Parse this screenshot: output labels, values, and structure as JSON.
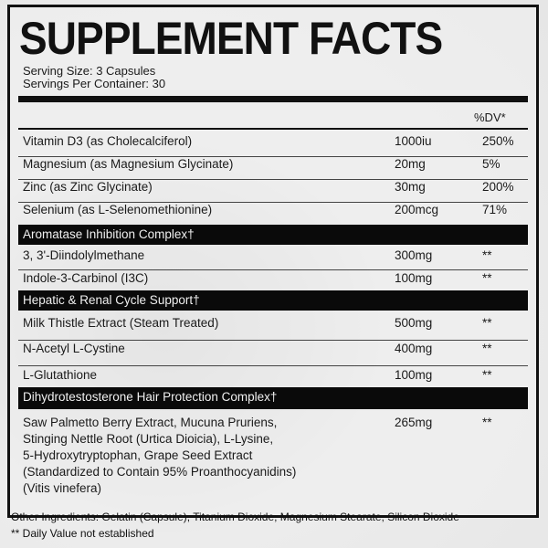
{
  "title": "SUPPLEMENT FACTS",
  "serving_size": "Serving Size: 3 Capsules",
  "servings_per_container": "Servings Per Container: 30",
  "dv_header": "%DV*",
  "rows": [
    {
      "name": "Vitamin D3 (as Cholecalciferol)",
      "amount": "1000iu",
      "dv": "250%"
    },
    {
      "name": "Magnesium (as Magnesium Glycinate)",
      "amount": "20mg",
      "dv": "5%"
    },
    {
      "name": "Zinc (as Zinc Glycinate)",
      "amount": "30mg",
      "dv": "200%"
    },
    {
      "name": "Selenium (as L-Selenomethionine)",
      "amount": "200mcg",
      "dv": "71%"
    }
  ],
  "sections": [
    {
      "title": "Aromatase Inhibition Complex†",
      "rows": [
        {
          "name": "3, 3'-Diindolylmethane",
          "amount": "300mg",
          "dv": "**"
        },
        {
          "name": "Indole-3-Carbinol (I3C)",
          "amount": "100mg",
          "dv": "**"
        }
      ]
    },
    {
      "title": "Hepatic & Renal Cycle Support†",
      "rows": [
        {
          "name": "Milk Thistle Extract (Steam Treated)",
          "amount": "500mg",
          "dv": "**"
        },
        {
          "name": "N-Acetyl L-Cystine",
          "amount": "400mg",
          "dv": "**"
        },
        {
          "name": "L-Glutathione",
          "amount": "100mg",
          "dv": "**"
        }
      ]
    },
    {
      "title": "Dihydrotestosterone Hair Protection Complex†",
      "rows": [
        {
          "name_lines": [
            "Saw Palmetto Berry Extract, Mucuna Pruriens,",
            "Stinging Nettle Root (Urtica Dioicia), L-Lysine,",
            "5-Hydroxytryptophan, Grape Seed Extract",
            "(Standardized to Contain 95% Proanthocyanidins)",
            "(Vitis vinefera)"
          ],
          "amount": "265mg",
          "dv": "**"
        }
      ]
    }
  ],
  "other_ingredients": "Other Ingredients: Gelatin (Capsule), Titanium Dioxide, Magnesium Stearate, Silicon Dioxide",
  "footnote": "** Daily Value not established"
}
